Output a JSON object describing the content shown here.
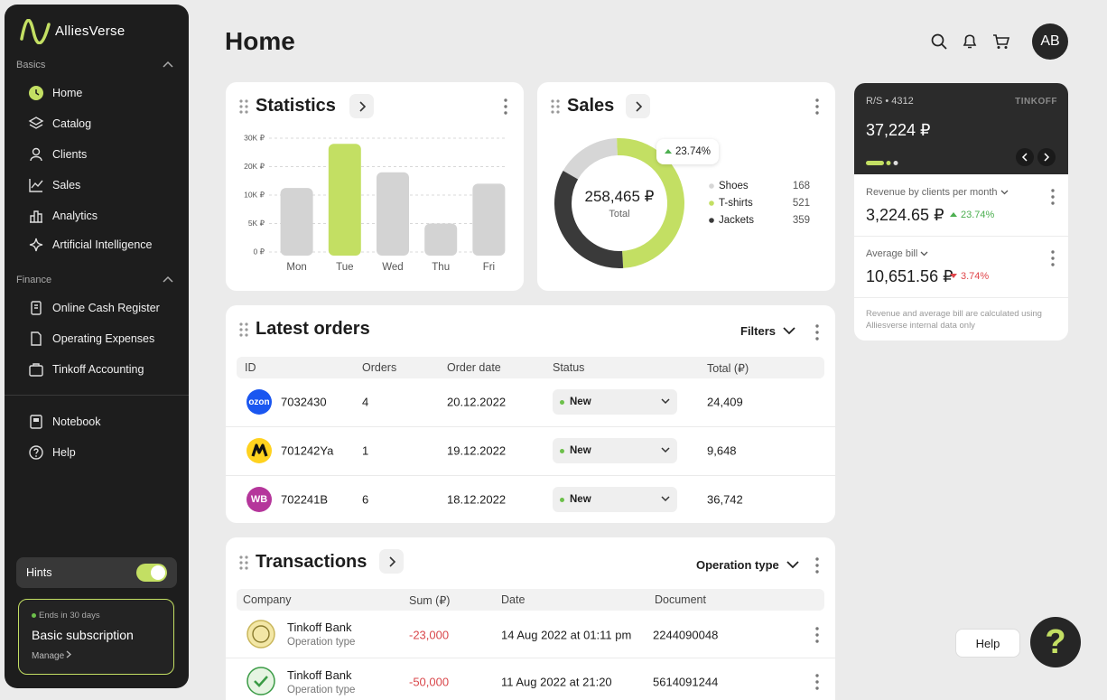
{
  "sidebar": {
    "brand": "AlliesVerse",
    "sections": [
      {
        "title": "Basics",
        "items": [
          "Home",
          "Catalog",
          "Clients",
          "Sales",
          "Analytics",
          "Artificial Intelligence"
        ]
      },
      {
        "title": "Finance",
        "items": [
          "Online Cash Register",
          "Operating Expenses",
          "Tinkoff Accounting"
        ]
      }
    ],
    "extra": [
      "Notebook",
      "Help"
    ],
    "hints": "Hints",
    "subscription": {
      "note": "Ends in 30 days",
      "title": "Basic subscription",
      "link": "Manage"
    }
  },
  "header": {
    "title": "Home",
    "avatar": "AB"
  },
  "chart_data": [
    {
      "type": "bar",
      "title": "Statistics",
      "categories": [
        "Mon",
        "Tue",
        "Wed",
        "Thu",
        "Fri"
      ],
      "values": [
        12500,
        28000,
        18000,
        5000,
        14000
      ],
      "colors": [
        "#d3d3d3",
        "#c3df63",
        "#d3d3d3",
        "#d3d3d3",
        "#d3d3d3"
      ],
      "ylim": [
        0,
        30000
      ],
      "yticks": [
        {
          "value": 0,
          "label": "0 ₽"
        },
        {
          "value": 5000,
          "label": "5K ₽"
        },
        {
          "value": 10000,
          "label": "10K ₽"
        },
        {
          "value": 20000,
          "label": "20K ₽"
        },
        {
          "value": 30000,
          "label": "30K ₽"
        }
      ],
      "grid": true
    },
    {
      "type": "donut",
      "title": "Sales",
      "center_value": "258,465 ₽",
      "center_caption": "Total",
      "badge": "23.74%",
      "categories": [
        "Shoes",
        "T-shirts",
        "Jackets"
      ],
      "values": [
        168,
        521,
        359
      ],
      "colors": [
        "#d6d6d6",
        "#c3df63",
        "#3a3a3a"
      ]
    }
  ],
  "orders": {
    "title": "Latest orders",
    "filter": "Filters",
    "columns": [
      "ID",
      "Orders",
      "Order date",
      "Status",
      "Total (₽)"
    ],
    "rows": [
      {
        "logo": "ozon",
        "id": "7032430",
        "orders": "4",
        "date": "20.12.2022",
        "status": "New",
        "total": "24,409"
      },
      {
        "id": "701242Ya",
        "orders": "1",
        "date": "19.12.2022",
        "status": "New",
        "total": "9,648"
      },
      {
        "logo": "WB",
        "id": "702241B",
        "orders": "6",
        "date": "18.12.2022",
        "status": "New",
        "total": "36,742"
      }
    ]
  },
  "transactions": {
    "title": "Transactions",
    "filter": "Operation type",
    "columns": [
      "Company",
      "Sum (₽)",
      "Date",
      "Document"
    ],
    "rows": [
      {
        "company": "Tinkoff Bank",
        "type": "Operation type",
        "sum": "-23,000",
        "date": "14 Aug 2022 at 01:11 pm",
        "document": "2244090048"
      },
      {
        "company": "Tinkoff Bank",
        "type": "Operation type",
        "sum": "-50,000",
        "date": "11 Aug 2022 at 21:20",
        "document": "5614091244"
      }
    ]
  },
  "account": {
    "number": "R/S • 4312",
    "bank": "TINKOFF",
    "balance": "37,224 ₽",
    "metrics": [
      {
        "label": "Revenue by clients per month",
        "value": "3,224.65 ₽",
        "change": "23.74%"
      },
      {
        "label": "Average bill",
        "value": "10,651.56 ₽",
        "change": "3.74%"
      }
    ],
    "note": "Revenue and average bill are calculated using Alliesverse internal data only"
  },
  "help": {
    "label": "Help",
    "icon": "?"
  }
}
